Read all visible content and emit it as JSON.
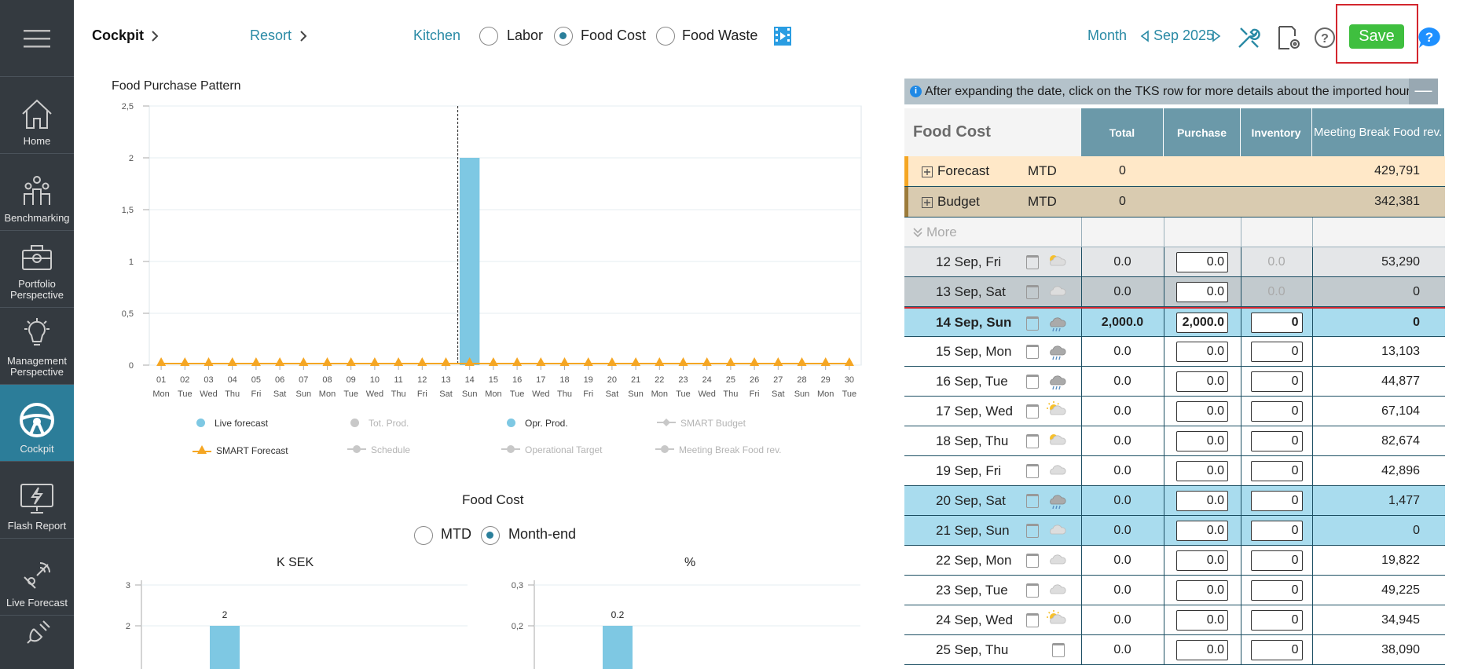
{
  "sidebar": {
    "items": [
      {
        "label": "Home",
        "icon": "home-icon"
      },
      {
        "label": "Benchmarking",
        "icon": "benchmark-icon"
      },
      {
        "label": "Portfolio Perspective",
        "icon": "briefcase-icon"
      },
      {
        "label": "Management Perspective",
        "icon": "lightbulb-icon"
      },
      {
        "label": "Cockpit",
        "icon": "steering-wheel-icon",
        "active": true
      },
      {
        "label": "Flash Report",
        "icon": "flash-report-icon"
      },
      {
        "label": "Live Forecast",
        "icon": "satellite-icon"
      }
    ]
  },
  "topbar": {
    "cockpit": "Cockpit",
    "resort": "Resort",
    "kitchen": "Kitchen",
    "labor": "Labor",
    "food_cost": "Food Cost",
    "food_waste": "Food Waste",
    "month": "Month",
    "period": "Sep 2025",
    "save": "Save"
  },
  "chart": {
    "title": "Food Purchase Pattern",
    "legend": [
      {
        "label": "Live forecast",
        "on": true,
        "color": "#7ec8e3",
        "marker": "dot"
      },
      {
        "label": "Tot. Prod.",
        "on": false,
        "color": "#c8c8c8",
        "marker": "dot"
      },
      {
        "label": "Opr. Prod.",
        "on": true,
        "color": "#7ec8e3",
        "marker": "dot"
      },
      {
        "label": "SMART Budget",
        "on": false,
        "color": "#c8c8c8",
        "marker": "diamond"
      },
      {
        "label": "SMART Forecast",
        "on": true,
        "color": "#f5a623",
        "marker": "triangle"
      },
      {
        "label": "Schedule",
        "on": false,
        "color": "#c8c8c8",
        "marker": "dot"
      },
      {
        "label": "Operational Target",
        "on": false,
        "color": "#c8c8c8",
        "marker": "dot"
      },
      {
        "label": "Meeting Break Food rev.",
        "on": false,
        "color": "#c8c8c8",
        "marker": "dot"
      }
    ]
  },
  "chart_data": [
    {
      "type": "bar",
      "ylim": [
        0,
        2.5
      ],
      "yticks": [
        "0",
        "0,5",
        "1",
        "1,5",
        "2",
        "2,5"
      ],
      "categories": [
        "01",
        "02",
        "03",
        "04",
        "05",
        "06",
        "07",
        "08",
        "09",
        "10",
        "11",
        "12",
        "13",
        "14",
        "15",
        "16",
        "17",
        "18",
        "19",
        "20",
        "21",
        "22",
        "23",
        "24",
        "25",
        "26",
        "27",
        "28",
        "29",
        "30"
      ],
      "weekdays": [
        "Mon",
        "Tue",
        "Wed",
        "Thu",
        "Fri",
        "Sat",
        "Sun",
        "Mon",
        "Tue",
        "Wed",
        "Thu",
        "Fri",
        "Sat",
        "Sun",
        "Mon",
        "Tue",
        "Wed",
        "Thu",
        "Fri",
        "Sat",
        "Sun",
        "Mon",
        "Tue",
        "Wed",
        "Thu",
        "Fri",
        "Sat",
        "Sun",
        "Mon",
        "Tue"
      ],
      "series": [
        {
          "name": "Opr. Prod.",
          "values": [
            0,
            0,
            0,
            0,
            0,
            0,
            0,
            0,
            0,
            0,
            0,
            0,
            0,
            2,
            0,
            0,
            0,
            0,
            0,
            0,
            0,
            0,
            0,
            0,
            0,
            0,
            0,
            0,
            0,
            0
          ]
        },
        {
          "name": "SMART Forecast",
          "values": [
            0,
            0,
            0,
            0,
            0,
            0,
            0,
            0,
            0,
            0,
            0,
            0,
            0,
            0,
            0,
            0,
            0,
            0,
            0,
            0,
            0,
            0,
            0,
            0,
            0,
            0,
            0,
            0,
            0,
            0
          ]
        }
      ],
      "today_marker": "14"
    },
    {
      "type": "bar",
      "title": "K SEK",
      "ylim": [
        0,
        3
      ],
      "yticks": [
        "2",
        "3"
      ],
      "values": [
        2
      ],
      "data_labels": [
        "2"
      ]
    },
    {
      "type": "bar",
      "title": "%",
      "ylim": [
        0,
        0.3
      ],
      "yticks": [
        "0,2",
        "0,3"
      ],
      "values": [
        0.2
      ],
      "data_labels": [
        "0.2"
      ]
    }
  ],
  "foodcost_panel": {
    "title": "Food Cost",
    "mtd": "MTD",
    "month_end": "Month-end"
  },
  "info": "After expanding the date, click on the TKS row for more details about the imported hours",
  "table": {
    "header": {
      "label": "Food Cost",
      "total": "Total",
      "purchase": "Purchase",
      "inventory": "Inventory",
      "meeting": "Meeting Break Food rev."
    },
    "forecast": {
      "label": "Forecast",
      "period": "MTD",
      "total": "0",
      "meeting": "429,791"
    },
    "budget": {
      "label": "Budget",
      "period": "MTD",
      "total": "0",
      "meeting": "342,381"
    },
    "more": "More",
    "rows": [
      {
        "date": "12 Sep, Fri",
        "weather": "partly-sunny",
        "total": "0.0",
        "purchase": "0.0",
        "inventory": "0.0",
        "inv_static": true,
        "meeting": "53,290",
        "style": "grey"
      },
      {
        "date": "13 Sep, Sat",
        "weather": "cloud",
        "total": "0.0",
        "purchase": "0.0",
        "inventory": "0.0",
        "inv_static": true,
        "meeting": "0",
        "style": "grey2"
      },
      {
        "date": "14 Sep, Sun",
        "weather": "rain",
        "total": "2,000.0",
        "purchase": "2,000.0",
        "inventory": "0",
        "meeting": "0",
        "style": "today"
      },
      {
        "date": "15 Sep, Mon",
        "weather": "rain",
        "total": "0.0",
        "purchase": "0.0",
        "inventory": "0",
        "meeting": "13,103",
        "style": "white"
      },
      {
        "date": "16 Sep, Tue",
        "weather": "rain",
        "total": "0.0",
        "purchase": "0.0",
        "inventory": "0",
        "meeting": "44,877",
        "style": "white"
      },
      {
        "date": "17 Sep, Wed",
        "weather": "sunny-cloud",
        "total": "0.0",
        "purchase": "0.0",
        "inventory": "0",
        "meeting": "67,104",
        "style": "white"
      },
      {
        "date": "18 Sep, Thu",
        "weather": "partly-sunny",
        "total": "0.0",
        "purchase": "0.0",
        "inventory": "0",
        "meeting": "82,674",
        "style": "white"
      },
      {
        "date": "19 Sep, Fri",
        "weather": "cloud",
        "total": "0.0",
        "purchase": "0.0",
        "inventory": "0",
        "meeting": "42,896",
        "style": "white"
      },
      {
        "date": "20 Sep, Sat",
        "weather": "rain",
        "total": "0.0",
        "purchase": "0.0",
        "inventory": "0",
        "meeting": "1,477",
        "style": "weekend"
      },
      {
        "date": "21 Sep, Sun",
        "weather": "cloud",
        "total": "0.0",
        "purchase": "0.0",
        "inventory": "0",
        "meeting": "0",
        "style": "weekend"
      },
      {
        "date": "22 Sep, Mon",
        "weather": "cloud",
        "total": "0.0",
        "purchase": "0.0",
        "inventory": "0",
        "meeting": "19,822",
        "style": "white"
      },
      {
        "date": "23 Sep, Tue",
        "weather": "cloud",
        "total": "0.0",
        "purchase": "0.0",
        "inventory": "0",
        "meeting": "49,225",
        "style": "white"
      },
      {
        "date": "24 Sep, Wed",
        "weather": "sunny-cloud",
        "total": "0.0",
        "purchase": "0.0",
        "inventory": "0",
        "meeting": "34,945",
        "style": "white"
      },
      {
        "date": "25 Sep, Thu",
        "weather": "none",
        "total": "0.0",
        "purchase": "0.0",
        "inventory": "0",
        "meeting": "38,090",
        "style": "white"
      }
    ]
  },
  "colors": {
    "sidebar": "#343a40",
    "active": "#2c7d99",
    "bar": "#7ec8e3",
    "accent": "#2a8aa5",
    "forecast_row": "#ffe8c8",
    "budget_row": "#d9cbb0",
    "weekend_row": "#a9dcee",
    "save": "#3fbf3f"
  }
}
